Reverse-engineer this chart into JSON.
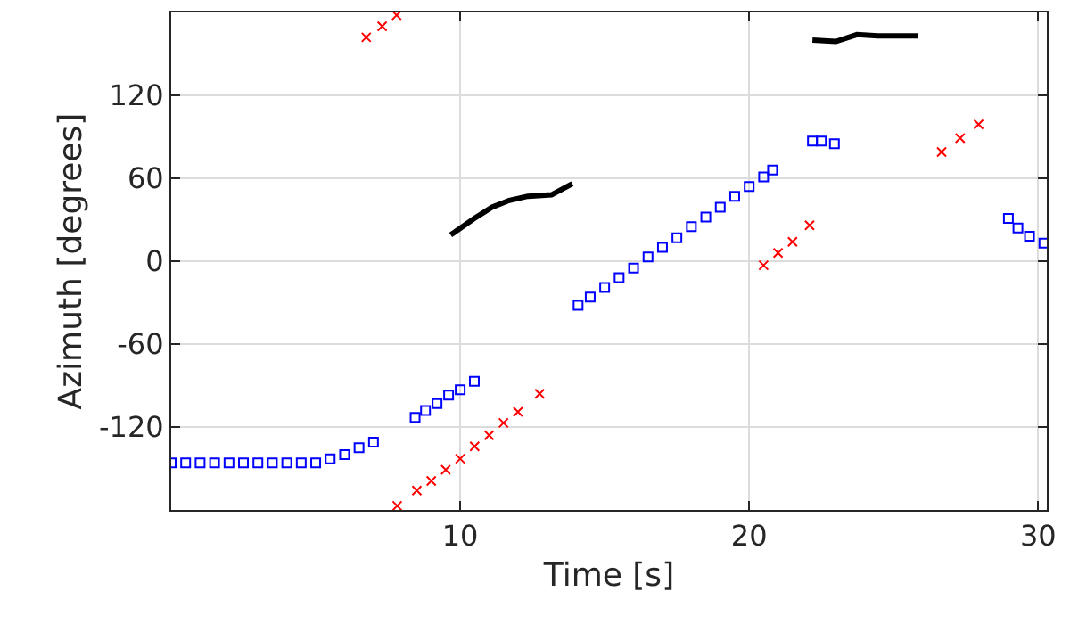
{
  "chart_data": {
    "type": "scatter",
    "xlabel": "Time [s]",
    "ylabel": "Azimuth [degrees]",
    "xlim": [
      0,
      30.3
    ],
    "ylim": [
      -180,
      180
    ],
    "xticks": [
      10,
      20,
      30
    ],
    "yticks": [
      -120,
      -60,
      0,
      60,
      120
    ],
    "grid": true,
    "series": [
      {
        "marker": "square",
        "color": "#0000ff",
        "x": [
          0,
          0.5,
          1,
          1.5,
          2,
          2.5,
          3,
          3.5,
          4,
          4.5,
          5,
          5.5,
          6,
          6.5,
          7,
          null,
          8.44,
          8.8,
          9.2,
          9.6,
          10,
          10.49,
          null,
          14.08,
          14.5,
          15,
          15.5,
          16,
          16.5,
          17,
          17.5,
          18,
          18.5,
          19,
          19.5,
          20,
          20.5,
          20.81,
          null,
          22.19,
          22.5,
          22.95,
          null,
          28.97,
          29.3,
          29.7,
          30.2
        ],
        "values": [
          -146,
          -146,
          -146,
          -146,
          -146,
          -146,
          -146,
          -146,
          -146,
          -146,
          -146,
          -143,
          -140,
          -135,
          -131,
          null,
          -113,
          -108,
          -103,
          -97,
          -93,
          -87,
          null,
          -32,
          -26,
          -19,
          -12,
          -5,
          3,
          10,
          17,
          25,
          32,
          39,
          47,
          54,
          61,
          66,
          null,
          87,
          87,
          85,
          null,
          31,
          24,
          18,
          13
        ]
      },
      {
        "marker": "cross",
        "color": "#ff0000",
        "x": [
          6.75,
          7.3,
          7.8,
          null,
          7.82,
          8.5,
          9,
          9.5,
          10,
          10.5,
          11,
          11.5,
          12,
          12.75,
          null,
          20.5,
          21,
          21.5,
          22.09,
          null,
          26.66,
          27.3,
          27.94
        ],
        "values": [
          162,
          170,
          178,
          null,
          -177,
          -166,
          -159,
          -151,
          -143,
          -134,
          -126,
          -117,
          -109,
          -96,
          null,
          -3,
          6,
          14,
          26,
          null,
          79,
          89,
          99
        ]
      },
      {
        "type": "line",
        "marker": "none",
        "line_style": "solid",
        "color": "#000000",
        "x": [
          9.67,
          10.49,
          11.1,
          11.7,
          12.34,
          13.16,
          13.88,
          null,
          22.19,
          23.0,
          23.73,
          24.45,
          25.84
        ],
        "values": [
          19,
          31,
          39,
          44,
          47,
          48,
          56,
          null,
          160,
          159,
          164,
          163,
          163
        ]
      }
    ]
  }
}
